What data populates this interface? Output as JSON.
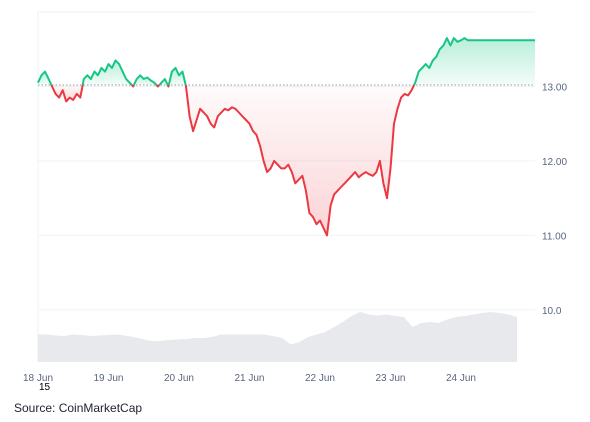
{
  "chart_data": {
    "type": "line",
    "title": "",
    "xlabel": "",
    "ylabel": "",
    "x_ticks": [
      "18 Jun",
      "19 Jun",
      "20 Jun",
      "21 Jun",
      "22 Jun",
      "23 Jun",
      "24 Jun"
    ],
    "x_tick_sub": "15",
    "y_ticks": [
      "13.00",
      "12.00",
      "11.00",
      "10.0"
    ],
    "ylim": [
      9.3,
      14.0
    ],
    "baseline": 13.02,
    "colors": {
      "above": "#16c784",
      "below": "#ea3943",
      "volume": "#e7e9ec",
      "grid": "#eff2f5"
    },
    "series": [
      {
        "x": [
          18.0,
          18.05,
          18.1,
          18.15,
          18.2,
          18.25,
          18.3,
          18.35,
          18.4,
          18.45,
          18.5,
          18.55,
          18.6,
          18.65,
          18.7,
          18.75,
          18.8,
          18.85,
          18.9,
          18.95,
          19.0,
          19.05,
          19.1,
          19.15,
          19.2,
          19.25,
          19.3,
          19.35,
          19.4,
          19.45,
          19.5,
          19.55,
          19.6,
          19.65,
          19.7,
          19.75,
          19.8,
          19.85,
          19.9,
          19.95,
          20.0,
          20.05,
          20.1,
          20.15,
          20.2,
          20.25,
          20.3,
          20.35,
          20.4,
          20.45,
          20.5,
          20.55,
          20.6,
          20.65,
          20.7,
          20.75,
          20.8,
          20.85,
          20.9,
          20.95,
          21.0,
          21.05,
          21.1,
          21.15,
          21.2,
          21.25,
          21.3,
          21.35,
          21.4,
          21.45,
          21.5,
          21.55,
          21.6,
          21.65,
          21.7,
          21.75,
          21.8,
          21.85,
          21.9,
          21.95,
          22.0,
          22.05,
          22.1,
          22.15,
          22.2,
          22.25,
          22.3,
          22.35,
          22.4,
          22.45,
          22.5,
          22.55,
          22.6,
          22.65,
          22.7,
          22.75,
          22.8,
          22.85,
          22.9,
          22.95,
          23.0,
          23.05,
          23.1,
          23.15,
          23.2,
          23.25,
          23.3,
          23.35,
          23.4,
          23.45,
          23.5,
          23.55,
          23.6,
          23.65,
          23.7,
          23.75,
          23.8,
          23.85,
          23.9,
          23.95,
          24.0,
          24.05,
          24.1,
          24.15,
          24.2,
          24.25,
          24.3,
          24.35,
          24.4,
          24.45,
          24.5,
          24.55,
          24.6,
          24.65,
          24.7,
          24.75,
          24.8,
          24.85,
          24.9,
          24.95,
          25.0,
          25.05
        ],
        "y": [
          13.05,
          13.15,
          13.2,
          13.1,
          13.0,
          12.9,
          12.85,
          12.95,
          12.8,
          12.85,
          12.82,
          12.9,
          12.85,
          13.1,
          13.15,
          13.1,
          13.2,
          13.15,
          13.25,
          13.2,
          13.3,
          13.25,
          13.35,
          13.3,
          13.2,
          13.1,
          13.05,
          13.0,
          13.1,
          13.15,
          13.1,
          13.12,
          13.08,
          13.05,
          13.0,
          13.05,
          13.1,
          13.0,
          13.2,
          13.25,
          13.15,
          13.2,
          13.0,
          12.6,
          12.4,
          12.55,
          12.7,
          12.65,
          12.6,
          12.5,
          12.45,
          12.6,
          12.65,
          12.7,
          12.68,
          12.72,
          12.7,
          12.65,
          12.6,
          12.55,
          12.5,
          12.4,
          12.35,
          12.2,
          12.0,
          11.85,
          11.9,
          12.0,
          11.95,
          11.9,
          11.9,
          11.95,
          11.85,
          11.7,
          11.75,
          11.8,
          11.6,
          11.3,
          11.25,
          11.15,
          11.2,
          11.1,
          11.0,
          11.4,
          11.55,
          11.6,
          11.65,
          11.7,
          11.75,
          11.8,
          11.85,
          11.78,
          11.82,
          11.85,
          11.82,
          11.8,
          11.85,
          12.0,
          11.7,
          11.5,
          11.9,
          12.5,
          12.7,
          12.85,
          12.9,
          12.88,
          12.95,
          13.05,
          13.2,
          13.25,
          13.3,
          13.25,
          13.35,
          13.4,
          13.5,
          13.55,
          13.65,
          13.55,
          13.65,
          13.6,
          13.62,
          13.65,
          13.62,
          13.62,
          13.62,
          13.62,
          13.62,
          13.62,
          13.62,
          13.62,
          13.62,
          13.62,
          13.62,
          13.62,
          13.62,
          13.62,
          13.62,
          13.62,
          13.62,
          13.62,
          13.62,
          13.62
        ]
      }
    ],
    "volume": [
      0.55,
      0.55,
      0.53,
      0.52,
      0.55,
      0.54,
      0.52,
      0.53,
      0.54,
      0.55,
      0.53,
      0.5,
      0.46,
      0.42,
      0.42,
      0.44,
      0.45,
      0.46,
      0.48,
      0.48,
      0.5,
      0.55,
      0.55,
      0.55,
      0.55,
      0.55,
      0.55,
      0.52,
      0.48,
      0.35,
      0.4,
      0.5,
      0.55,
      0.6,
      0.7,
      0.8,
      0.92,
      1.0,
      0.95,
      0.93,
      0.95,
      0.92,
      0.9,
      0.7,
      0.78,
      0.8,
      0.78,
      0.85,
      0.9,
      0.92,
      0.95,
      0.98,
      1.0,
      0.98,
      0.95,
      0.9
    ],
    "source": "Source: CoinMarketCap"
  }
}
